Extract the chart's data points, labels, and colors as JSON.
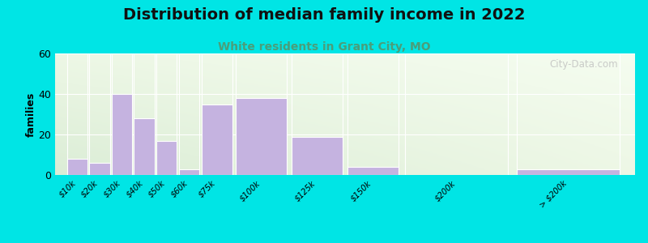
{
  "title": "Distribution of median family income in 2022",
  "subtitle": "White residents in Grant City, MO",
  "ylabel": "families",
  "bin_edges": [
    0,
    10,
    20,
    30,
    40,
    50,
    60,
    75,
    100,
    125,
    150,
    200,
    250
  ],
  "bin_labels": [
    "$10k",
    "$20k",
    "$30k",
    "$40k",
    "$50k",
    "$60k",
    "$75k",
    "$100k",
    "$125k",
    "$150k",
    "$200k",
    "> $200k"
  ],
  "values": [
    8,
    6,
    40,
    28,
    17,
    3,
    35,
    38,
    19,
    4,
    0,
    3
  ],
  "bar_color": "#c5b3e0",
  "bar_edge_color": "#ffffff",
  "background_color": "#00e5e5",
  "ylim": [
    0,
    60
  ],
  "yticks": [
    0,
    20,
    40,
    60
  ],
  "title_fontsize": 14,
  "subtitle_fontsize": 10,
  "subtitle_color": "#4a9e7a",
  "watermark": "City-Data.com"
}
